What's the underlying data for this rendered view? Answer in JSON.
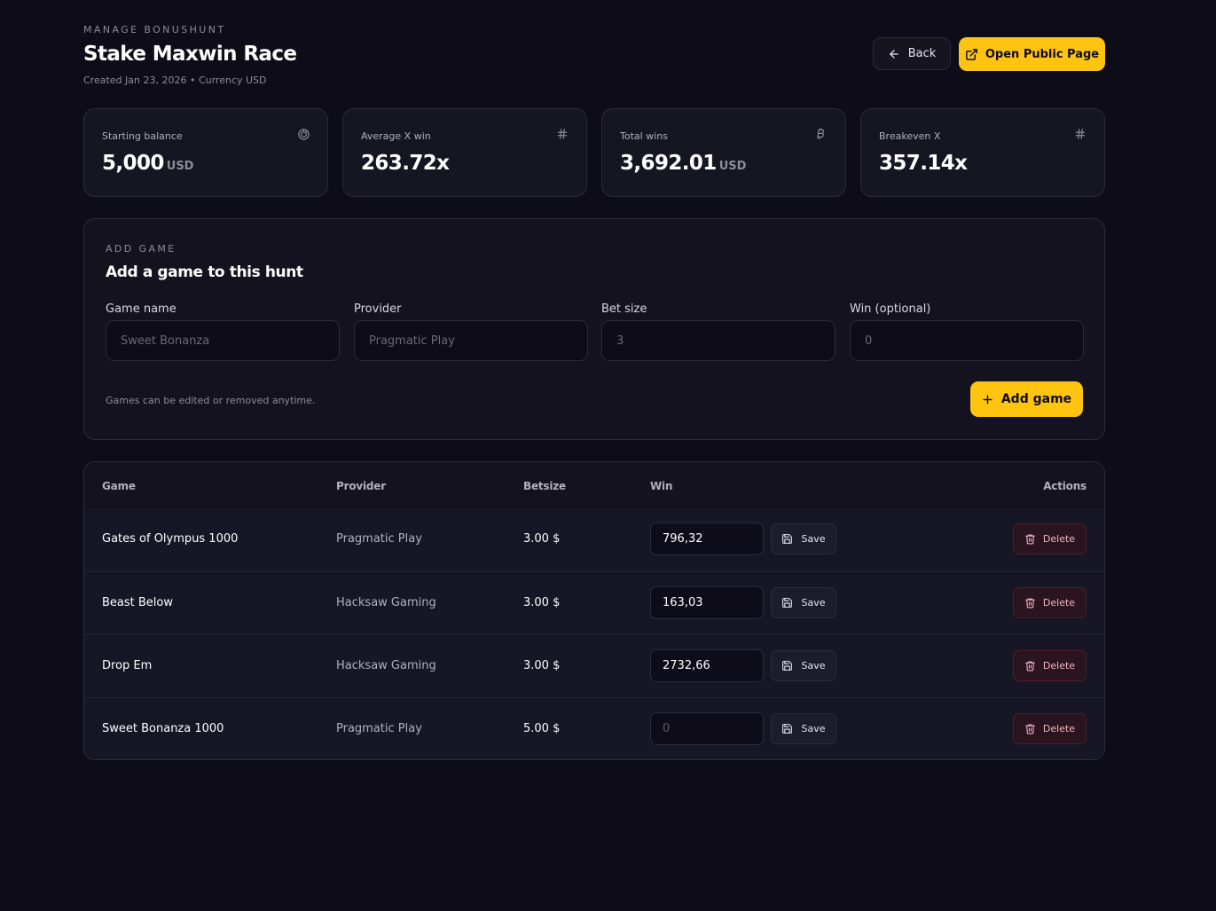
{
  "header": {
    "eyebrow": "MANAGE BONUSHUNT",
    "title": "Stake Maxwin Race",
    "meta": "Created Jan 23, 2026 • Currency USD",
    "back_label": "Back",
    "public_label": "Open Public Page"
  },
  "stats": [
    {
      "label": "Starting balance",
      "value": "5,000",
      "unit": "USD",
      "icon": "coins-icon"
    },
    {
      "label": "Average X win",
      "value": "263.72x",
      "unit": "",
      "icon": "hash-icon"
    },
    {
      "label": "Total wins",
      "value": "3,692.01",
      "unit": "USD",
      "icon": "bitcoin-icon"
    },
    {
      "label": "Breakeven X",
      "value": "357.14x",
      "unit": "",
      "icon": "hash-icon"
    }
  ],
  "add_game": {
    "eyebrow": "ADD GAME",
    "title": "Add a game to this hunt",
    "fields": [
      {
        "label": "Game name",
        "placeholder": "Sweet Bonanza"
      },
      {
        "label": "Provider",
        "placeholder": "Pragmatic Play"
      },
      {
        "label": "Bet size",
        "placeholder": "3"
      },
      {
        "label": "Win (optional)",
        "placeholder": "0"
      }
    ],
    "hint": "Games can be edited or removed anytime.",
    "button_label": "Add game"
  },
  "table": {
    "columns": {
      "game": "Game",
      "provider": "Provider",
      "betsize": "Betsize",
      "win": "Win",
      "actions": "Actions"
    },
    "save_label": "Save",
    "delete_label": "Delete",
    "rows": [
      {
        "game": "Gates of Olympus 1000",
        "provider": "Pragmatic Play",
        "betsize": "3.00 $",
        "win": "796,32",
        "win_placeholder": ""
      },
      {
        "game": "Beast Below",
        "provider": "Hacksaw Gaming",
        "betsize": "3.00 $",
        "win": "163,03",
        "win_placeholder": ""
      },
      {
        "game": "Drop Em",
        "provider": "Hacksaw Gaming",
        "betsize": "3.00 $",
        "win": "2732,66",
        "win_placeholder": ""
      },
      {
        "game": "Sweet Bonanza 1000",
        "provider": "Pragmatic Play",
        "betsize": "5.00 $",
        "win": "",
        "win_placeholder": "0"
      }
    ]
  },
  "colors": {
    "background": "#0d0c18",
    "accent": "#ffc40f",
    "danger": "#f3b8c2"
  }
}
